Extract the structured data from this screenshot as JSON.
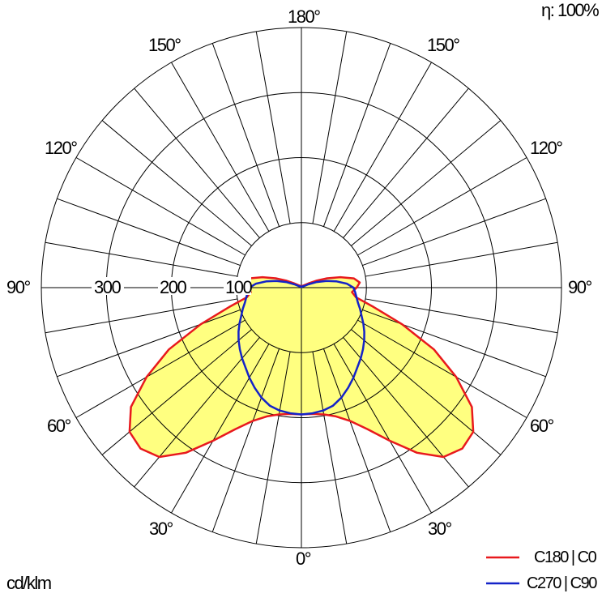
{
  "chart_data": {
    "type": "polar",
    "efficiency": "η: 100%",
    "unit": "cd/klm",
    "angle_labels": [
      "180°",
      "150°",
      "150°",
      "120°",
      "120°",
      "90°",
      "90°",
      "60°",
      "60°",
      "30°",
      "30°",
      "0°"
    ],
    "radial_ticks": [
      "300",
      "200",
      "100"
    ],
    "rlim": [
      0,
      400
    ],
    "grid": true,
    "legend_position": "bottom-right",
    "colors": {
      "fill": "#ffff80",
      "c0": "#e8191d",
      "c90": "#1423c8",
      "grid": "#000000"
    },
    "series": [
      {
        "name": "C180 | C0",
        "color": "#e8191d",
        "points_deg_cd": [
          [
            0,
            195
          ],
          [
            5,
            195
          ],
          [
            10,
            198
          ],
          [
            15,
            205
          ],
          [
            20,
            218
          ],
          [
            25,
            240
          ],
          [
            30,
            272
          ],
          [
            35,
            310
          ],
          [
            40,
            340
          ],
          [
            45,
            350
          ],
          [
            50,
            345
          ],
          [
            55,
            320
          ],
          [
            60,
            275
          ],
          [
            65,
            225
          ],
          [
            70,
            165
          ],
          [
            75,
            115
          ],
          [
            80,
            85
          ],
          [
            85,
            78
          ],
          [
            90,
            85
          ],
          [
            95,
            90
          ],
          [
            100,
            82
          ],
          [
            105,
            62
          ],
          [
            110,
            42
          ],
          [
            115,
            25
          ],
          [
            120,
            14
          ],
          [
            130,
            6
          ],
          [
            150,
            3
          ],
          [
            180,
            2
          ]
        ]
      },
      {
        "name": "C270 | C90",
        "color": "#1423c8",
        "points_deg_cd": [
          [
            0,
            195
          ],
          [
            5,
            194
          ],
          [
            10,
            192
          ],
          [
            15,
            188
          ],
          [
            20,
            180
          ],
          [
            25,
            170
          ],
          [
            30,
            160
          ],
          [
            35,
            150
          ],
          [
            40,
            142
          ],
          [
            45,
            134
          ],
          [
            50,
            126
          ],
          [
            55,
            118
          ],
          [
            60,
            110
          ],
          [
            65,
            102
          ],
          [
            70,
            96
          ],
          [
            75,
            90
          ],
          [
            80,
            86
          ],
          [
            85,
            83
          ],
          [
            90,
            80
          ],
          [
            95,
            70
          ],
          [
            100,
            55
          ],
          [
            105,
            40
          ],
          [
            110,
            25
          ],
          [
            115,
            12
          ],
          [
            120,
            5
          ],
          [
            150,
            2
          ],
          [
            180,
            1
          ]
        ]
      }
    ]
  }
}
